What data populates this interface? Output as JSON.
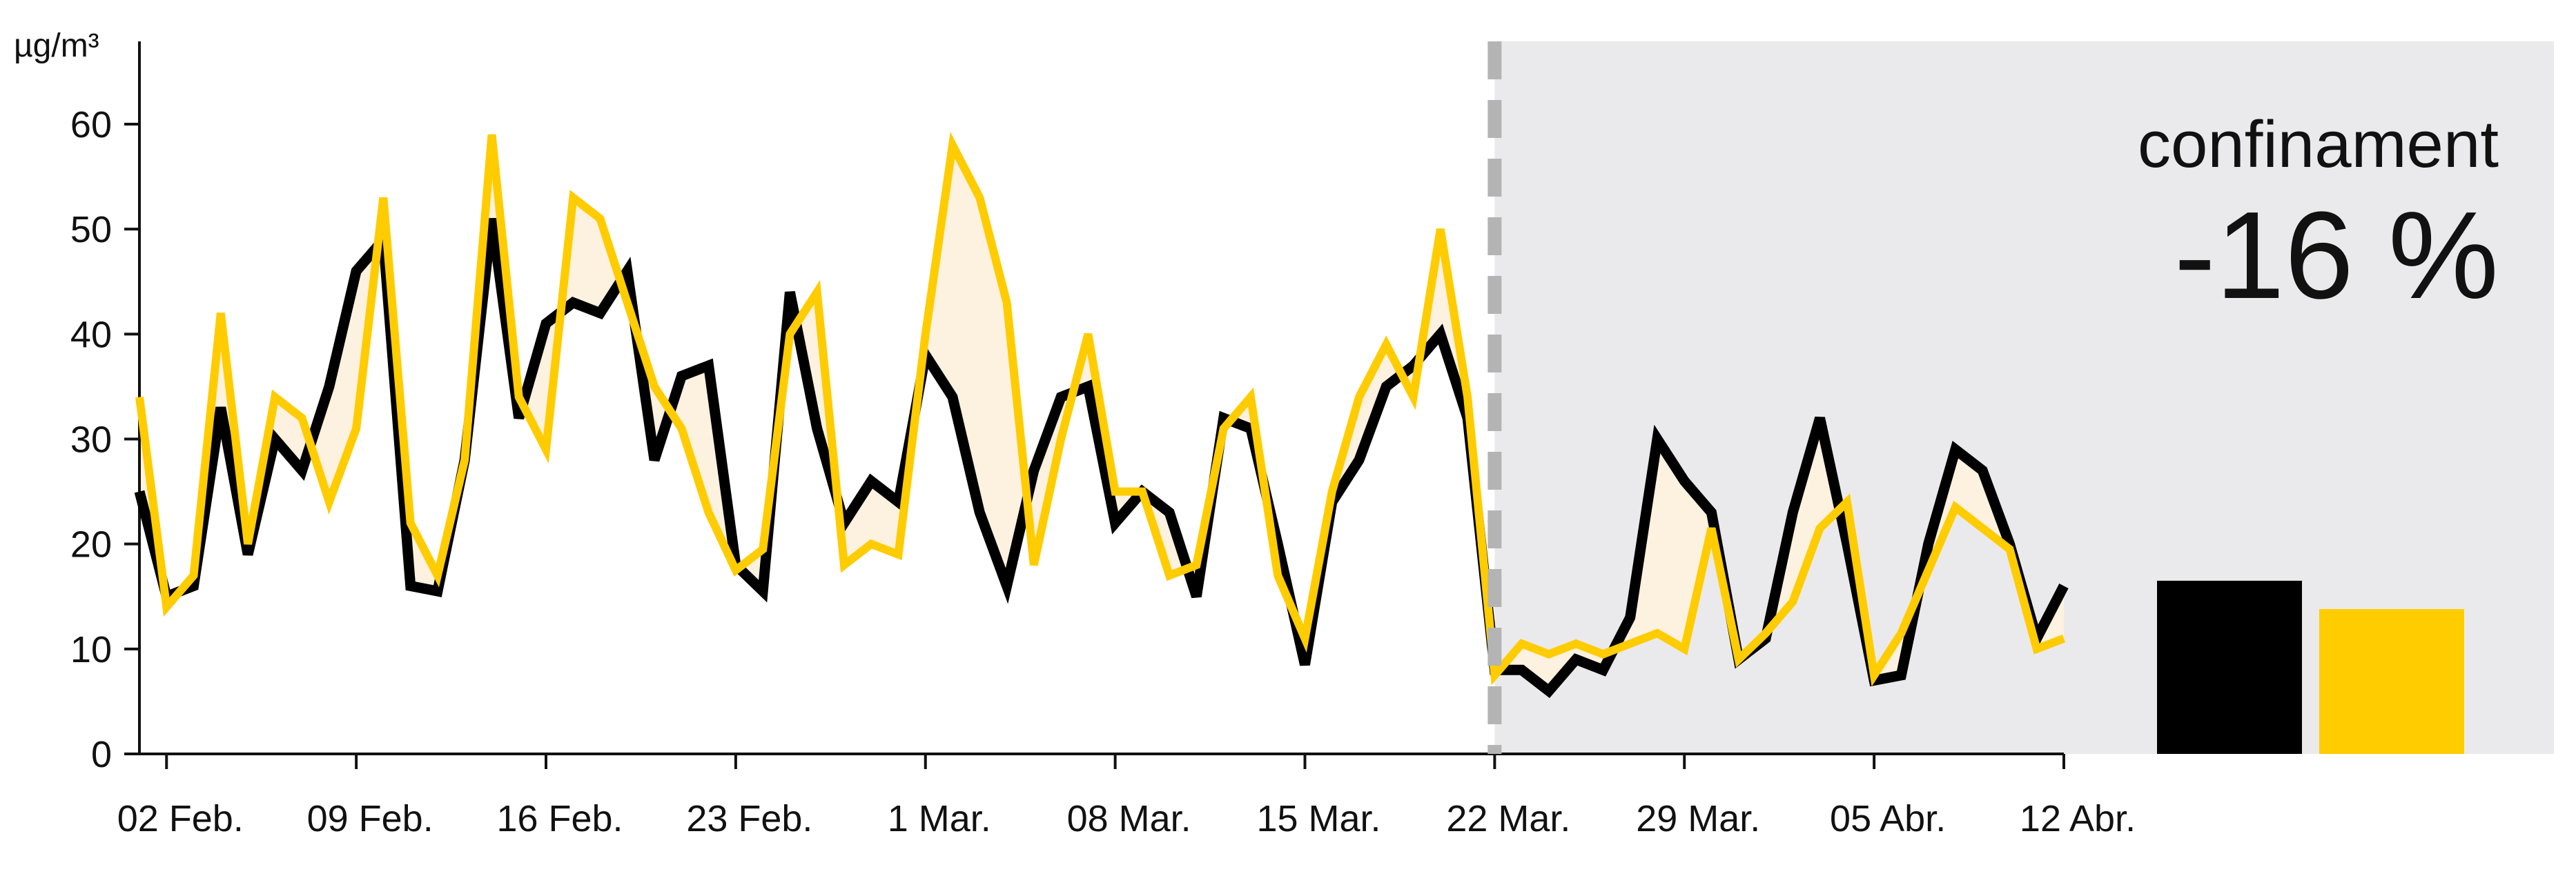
{
  "chart_data": {
    "type": "line",
    "unit": "µg/m³",
    "ylim": [
      0,
      60
    ],
    "y_ticks": [
      0,
      10,
      20,
      30,
      40,
      50,
      60
    ],
    "x_start_date": "2020-02-01",
    "x_ticks": [
      {
        "date": "2020-02-02",
        "label": "02 Feb."
      },
      {
        "date": "2020-02-09",
        "label": "09 Feb."
      },
      {
        "date": "2020-02-16",
        "label": "16 Feb."
      },
      {
        "date": "2020-02-23",
        "label": "23 Feb."
      },
      {
        "date": "2020-03-01",
        "label": "1 Mar."
      },
      {
        "date": "2020-03-08",
        "label": "08 Mar."
      },
      {
        "date": "2020-03-15",
        "label": "15 Mar."
      },
      {
        "date": "2020-03-22",
        "label": "22 Mar."
      },
      {
        "date": "2020-03-29",
        "label": "29 Mar."
      },
      {
        "date": "2020-04-05",
        "label": "05 Abr."
      },
      {
        "date": "2020-04-12",
        "label": "12 Abr."
      }
    ],
    "lockdown_date": "2020-03-22",
    "series": [
      {
        "color": "#000000",
        "values": [
          25,
          15,
          16,
          33,
          19,
          30,
          27,
          35,
          46,
          49,
          16,
          15.5,
          28,
          51,
          32,
          41,
          43,
          42,
          46,
          28,
          36,
          37,
          18,
          15.5,
          44,
          31,
          22,
          26,
          24,
          38,
          34,
          23,
          16,
          27,
          34,
          35,
          22,
          25,
          23,
          15,
          32,
          31,
          20,
          8.5,
          24,
          28,
          35,
          37,
          40,
          32,
          8,
          8,
          6,
          9,
          8,
          13,
          30,
          26,
          23,
          9,
          11,
          23,
          32,
          20,
          7,
          7.5,
          20,
          29,
          27,
          20,
          11,
          16
        ]
      },
      {
        "color": "#FFCC00",
        "values": [
          34,
          14,
          17,
          42,
          20,
          34,
          32,
          24,
          31,
          53,
          22,
          17,
          28,
          59,
          34,
          29,
          53,
          51,
          43,
          35,
          31,
          23,
          17.5,
          19.5,
          40,
          44,
          18,
          20,
          19,
          40,
          58,
          53,
          43,
          18,
          30,
          40,
          25,
          25,
          17,
          18,
          31,
          34,
          17,
          11,
          25,
          34,
          39,
          34,
          50,
          34,
          7.5,
          10.5,
          9.5,
          10.5,
          9.5,
          10.5,
          11.5,
          10,
          21.5,
          9,
          11.5,
          14.5,
          21.5,
          24,
          7.5,
          11.5,
          17.5,
          23.5,
          21.5,
          19.5,
          10,
          11
        ]
      }
    ],
    "difference_fill_color": "#FDF1DF",
    "lockdown_shade_color": "#EAEAEC",
    "lockdown_line_color": "#B4B4B4"
  },
  "annotation": {
    "title": "confinament",
    "value": "-16 %"
  },
  "legend_bars": [
    {
      "color": "#000000",
      "value": 16.5
    },
    {
      "color": "#FFCC00",
      "value": 13.8
    }
  ]
}
